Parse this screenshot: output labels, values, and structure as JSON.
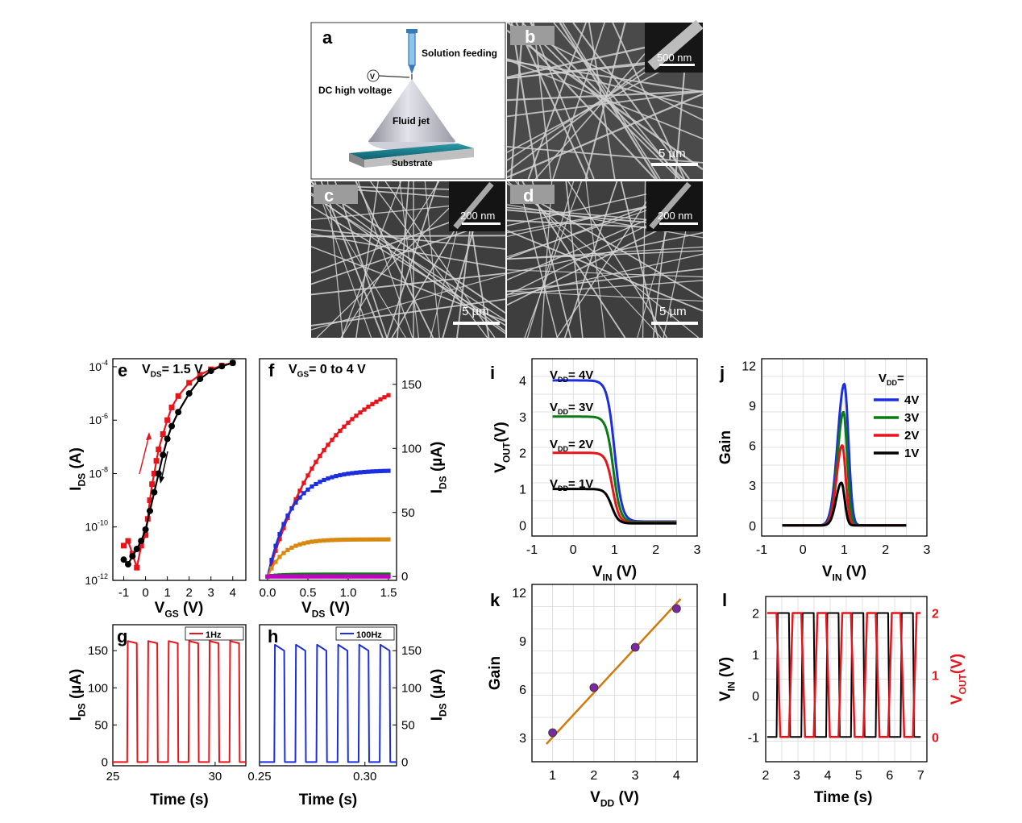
{
  "panels": {
    "a": {
      "letter": "a",
      "solution": "Solution feeding",
      "dcv": "DC high voltage",
      "jet": "Fluid jet",
      "substrate": "Substrate",
      "v": "V"
    },
    "b": {
      "letter": "b",
      "inset_scale": "500 nm",
      "scale": "5 µm"
    },
    "c": {
      "letter": "c",
      "inset_scale": "200 nm",
      "scale": "5 µm"
    },
    "d": {
      "letter": "d",
      "inset_scale": "200 nm",
      "scale": "5 µm"
    }
  },
  "colors": {
    "black": "#000000",
    "red": "#e8141c",
    "blue": "#1c2ee0",
    "green": "#0a7a12",
    "orange": "#d88a10",
    "magenta": "#c400c4",
    "purple": "#7a2aa0",
    "fit": "#d4780c",
    "grid": "#d8d8d8"
  },
  "chart_data": [
    {
      "id": "e",
      "type": "line",
      "letter": "e",
      "annotation": "V_DS= 1.5 V",
      "xlabel": "V_GS (V)",
      "ylabel": "I_DS (A)",
      "log_y": true,
      "xlim": [
        -1.5,
        4.6
      ],
      "ylim": [
        1e-12,
        0.0002
      ],
      "xticks": [
        "-1",
        "0",
        "1",
        "2",
        "3",
        "4"
      ],
      "yticks": [
        "10^-12",
        "10^-10",
        "10^-8",
        "10^-6",
        "10^-4"
      ],
      "series": [
        {
          "color": "red",
          "x": [
            -1.0,
            -0.8,
            -0.6,
            -0.4,
            -0.2,
            0.0,
            0.1,
            0.2,
            0.3,
            0.4,
            0.5,
            0.6,
            0.8,
            1.0,
            1.2,
            1.5,
            2.0,
            2.5,
            3.0,
            3.5,
            4.0
          ],
          "y": [
            2e-11,
            3e-11,
            1e-11,
            3e-12,
            2e-11,
            5e-11,
            2e-10,
            1e-09,
            4e-09,
            1e-08,
            3e-08,
            8e-08,
            3e-07,
            1e-06,
            3e-06,
            8e-06,
            2.5e-05,
            5e-05,
            8e-05,
            0.00011,
            0.00014
          ]
        },
        {
          "color": "black",
          "x": [
            -1.0,
            -0.8,
            -0.6,
            -0.4,
            -0.2,
            0.0,
            0.2,
            0.4,
            0.6,
            0.8,
            1.0,
            1.2,
            1.5,
            2.0,
            2.5,
            3.0,
            3.5,
            4.0
          ],
          "y": [
            6e-12,
            4e-12,
            8e-12,
            1.5e-11,
            3e-11,
            8e-11,
            4e-10,
            2e-09,
            1e-08,
            5e-08,
            2e-07,
            6e-07,
            2e-06,
            1e-05,
            3.5e-05,
            7e-05,
            0.000105,
            0.00014
          ]
        }
      ]
    },
    {
      "id": "f",
      "type": "line",
      "letter": "f",
      "annotation": "V_GS= 0 to 4 V",
      "xlabel": "V_DS (V)",
      "ylabel": "I_DS (µA)",
      "xlim": [
        -0.1,
        1.6
      ],
      "ylim": [
        -3,
        170
      ],
      "xticks": [
        "0.0",
        "0.5",
        "1.0",
        "1.5"
      ],
      "yticks": [
        "0",
        "50",
        "100",
        "150"
      ],
      "series": [
        {
          "color": "red",
          "Isat": 165,
          "k": 1.3
        },
        {
          "color": "blue",
          "Isat": 83,
          "k": 3.4
        },
        {
          "color": "orange",
          "Isat": 29,
          "k": 5.0
        },
        {
          "color": "green",
          "Isat": 1.5,
          "k": 6.0
        },
        {
          "color": "magenta",
          "Isat": 0.0,
          "k": 6.0
        }
      ]
    },
    {
      "id": "g",
      "type": "line",
      "letter": "g",
      "legend": "1Hz",
      "xlabel": "Time (s)",
      "ylabel": "I_DS (µA)",
      "xlim": [
        25,
        31.5
      ],
      "ylim": [
        -5,
        185
      ],
      "xticks": [
        "25",
        "30"
      ],
      "yticks": [
        "0",
        "50",
        "100",
        "150"
      ],
      "series": [
        {
          "color": "red",
          "period": 1.0,
          "start": 25.7,
          "duty": 0.5,
          "high": 160,
          "peak": 163
        }
      ]
    },
    {
      "id": "h",
      "type": "line",
      "letter": "h",
      "legend": "100Hz",
      "xlabel": "Time (s)",
      "ylabel": "I_DS (µA)",
      "xlim": [
        0.25,
        0.315
      ],
      "ylim": [
        -5,
        185
      ],
      "xticks": [
        "0.25",
        "0.30"
      ],
      "yticks": [
        "0",
        "50",
        "100",
        "150"
      ],
      "series": [
        {
          "color": "blue",
          "period": 0.01,
          "start": 0.257,
          "duty": 0.5,
          "high": 150,
          "peak": 158
        }
      ]
    },
    {
      "id": "i",
      "type": "line",
      "letter": "i",
      "xlabel": "V_IN (V)",
      "ylabel": "V_OUT(V)",
      "xlim": [
        -1,
        3
      ],
      "ylim": [
        -0.3,
        4.6
      ],
      "xticks": [
        "-1",
        "0",
        "1",
        "2",
        "3"
      ],
      "yticks": [
        "0",
        "1",
        "2",
        "3",
        "4"
      ],
      "labels": [
        "V_DD= 4V",
        "V_DD= 3V",
        "V_DD= 2V",
        "V_DD= 1V"
      ],
      "series": [
        {
          "color": "blue",
          "vdd": 4,
          "vm": 1.0,
          "w": 0.09,
          "low": 0.1
        },
        {
          "color": "green",
          "vdd": 3,
          "vm": 0.97,
          "w": 0.085,
          "low": 0.08
        },
        {
          "color": "red",
          "vdd": 2,
          "vm": 0.95,
          "w": 0.08,
          "low": 0.06
        },
        {
          "color": "black",
          "vdd": 1,
          "vm": 0.93,
          "w": 0.08,
          "low": 0.05
        }
      ]
    },
    {
      "id": "j",
      "type": "line",
      "letter": "j",
      "xlabel": "V_IN (V)",
      "ylabel": "Gain",
      "xlim": [
        -1,
        3
      ],
      "ylim": [
        -0.8,
        12.5
      ],
      "xticks": [
        "-1",
        "0",
        "1",
        "2",
        "3"
      ],
      "yticks": [
        "0",
        "3",
        "6",
        "9",
        "12"
      ],
      "legend_title": "V_DD=",
      "series": [
        {
          "name": "4V",
          "color": "blue",
          "peak": 10.6,
          "center": 1.0,
          "w": 0.1
        },
        {
          "name": "3V",
          "color": "green",
          "peak": 8.5,
          "center": 0.98,
          "w": 0.09
        },
        {
          "name": "2V",
          "color": "red",
          "peak": 6.0,
          "center": 0.95,
          "w": 0.085
        },
        {
          "name": "1V",
          "color": "black",
          "peak": 3.2,
          "center": 0.93,
          "w": 0.08
        }
      ]
    },
    {
      "id": "k",
      "type": "scatter",
      "letter": "k",
      "xlabel": "V_DD (V)",
      "ylabel": "Gain",
      "xlim": [
        0.5,
        4.5
      ],
      "ylim": [
        1.5,
        12.5
      ],
      "xticks": [
        "1",
        "2",
        "3",
        "4"
      ],
      "yticks": [
        "3",
        "6",
        "9",
        "12"
      ],
      "x": [
        1,
        2,
        3,
        4
      ],
      "y": [
        3.3,
        6.1,
        8.6,
        11.0
      ],
      "fit": [
        2.6,
        11.6
      ]
    },
    {
      "id": "l",
      "type": "line",
      "letter": "l",
      "xlabel": "Time (s)",
      "ylabel": "V_IN (V)",
      "ylabel2": "V_OUT(V)",
      "xlim": [
        2,
        7.2
      ],
      "ylim": [
        -1.6,
        2.4
      ],
      "xticks": [
        "2",
        "3",
        "4",
        "5",
        "6",
        "7"
      ],
      "yticks": [
        "-1",
        "0",
        "1",
        "2"
      ],
      "yticks2": [
        "0",
        "1",
        "2"
      ],
      "period": 0.8,
      "start": 2.35
    }
  ]
}
